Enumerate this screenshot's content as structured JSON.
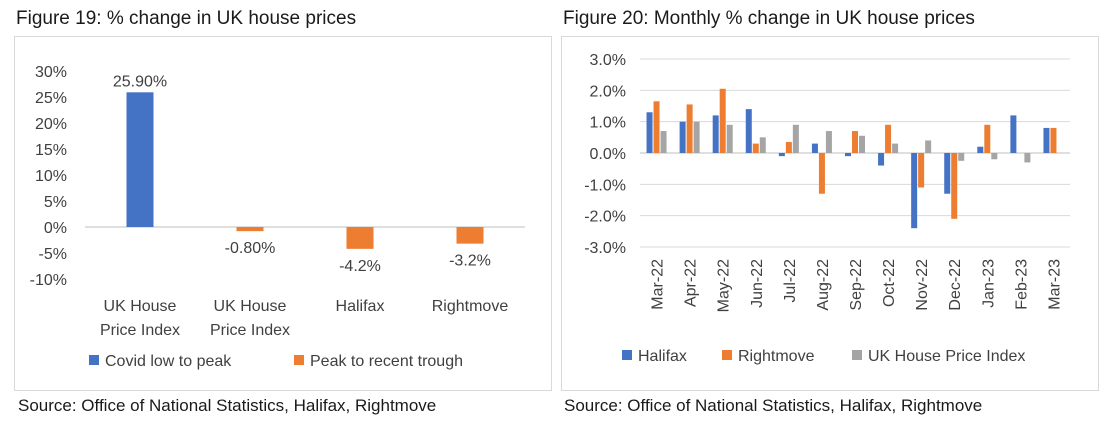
{
  "figure19": {
    "title": "Figure 19: % change in UK house prices",
    "source": "Source: Office of National Statistics, Halifax, Rightmove"
  },
  "figure20": {
    "title": "Figure 20: Monthly % change in UK house prices",
    "source": "Source: Office of National Statistics, Halifax, Rightmove"
  },
  "colors": {
    "blue": "#4472C4",
    "orange": "#ED7D31",
    "gray": "#A5A5A5",
    "grid": "#D9D9D9",
    "axis": "#BFBFBF"
  },
  "chart_data": [
    {
      "type": "bar",
      "title": "Figure 19: % change in UK house prices",
      "categories": [
        [
          "UK House",
          "Price Index"
        ],
        [
          "UK House",
          "Price Index"
        ],
        [
          "Halifax"
        ],
        [
          "Rightmove"
        ]
      ],
      "series": [
        {
          "name": "Covid low to peak",
          "color": "#4472C4",
          "values": [
            25.9,
            null,
            null,
            null
          ]
        },
        {
          "name": "Peak to recent trough",
          "color": "#ED7D31",
          "values": [
            null,
            -0.8,
            -4.2,
            -3.2
          ]
        }
      ],
      "data_labels": [
        "25.90%",
        "-0.80%",
        "-4.2%",
        "-3.2%"
      ],
      "ylim": [
        -10,
        30
      ],
      "yticks": [
        30,
        25,
        20,
        15,
        10,
        5,
        0,
        -5,
        -10
      ],
      "ytick_labels": [
        "30%",
        "25%",
        "20%",
        "15%",
        "10%",
        "5%",
        "0%",
        "-5%",
        "-10%"
      ],
      "grid": false,
      "legend": "bottom"
    },
    {
      "type": "bar",
      "title": "Figure 20: Monthly % change in UK house prices",
      "categories": [
        "Mar-22",
        "Apr-22",
        "May-22",
        "Jun-22",
        "Jul-22",
        "Aug-22",
        "Sep-22",
        "Oct-22",
        "Nov-22",
        "Dec-22",
        "Jan-23",
        "Feb-23",
        "Mar-23"
      ],
      "series": [
        {
          "name": "Halifax",
          "color": "#4472C4",
          "values": [
            1.3,
            1.0,
            1.2,
            1.4,
            -0.1,
            0.3,
            -0.1,
            -0.4,
            -2.4,
            -1.3,
            0.2,
            1.2,
            0.8
          ]
        },
        {
          "name": "Rightmove",
          "color": "#ED7D31",
          "values": [
            1.65,
            1.55,
            2.05,
            0.3,
            0.35,
            -1.3,
            0.7,
            0.9,
            -1.1,
            -2.1,
            0.9,
            0.0,
            0.8
          ]
        },
        {
          "name": "UK House Price Index",
          "color": "#A5A5A5",
          "values": [
            0.7,
            1.0,
            0.9,
            0.5,
            0.9,
            0.7,
            0.55,
            0.3,
            0.4,
            -0.25,
            -0.2,
            -0.3,
            null
          ]
        }
      ],
      "ylim": [
        -3,
        3
      ],
      "yticks": [
        3,
        2,
        1,
        0,
        -1,
        -2,
        -3
      ],
      "ytick_labels": [
        "3.0%",
        "2.0%",
        "1.0%",
        "0.0%",
        "-1.0%",
        "-2.0%",
        "-3.0%"
      ],
      "grid": true,
      "legend": "bottom"
    }
  ]
}
